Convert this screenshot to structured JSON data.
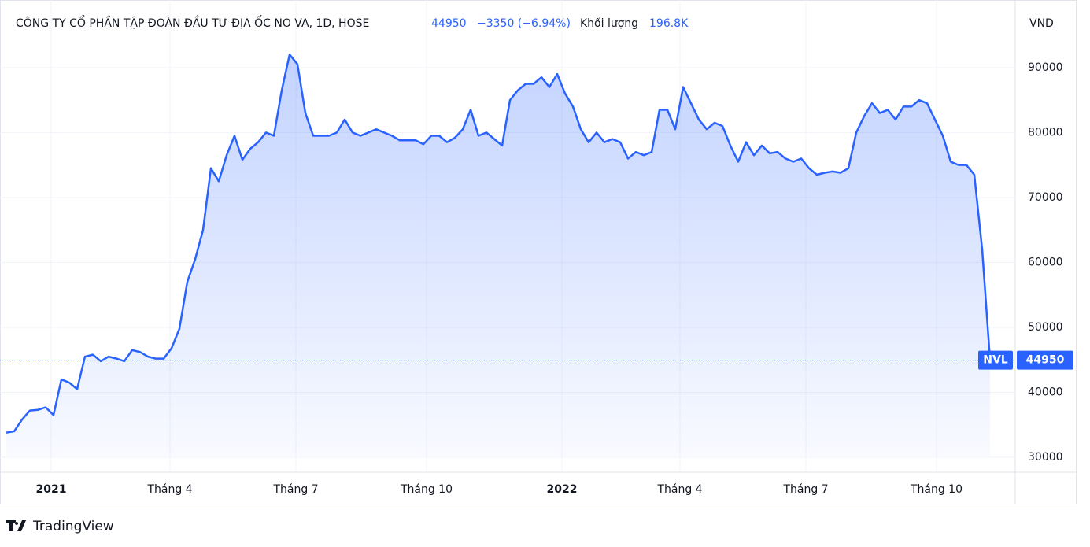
{
  "chart_data": {
    "type": "area",
    "title": "CÔNG TY CỔ PHẦN TẬP ĐOÀN ĐẦU TƯ ĐỊA ỐC NO VA, 1D, HOSE",
    "change": "−3350 (−6.94%)",
    "volume_label": "Khối lượng",
    "volume": "196.8K",
    "y_unit": "VND",
    "brand": "TradingView",
    "series": [
      {
        "name": "NVL",
        "color": "#2962ff",
        "values": [
          33800,
          34000,
          35800,
          37200,
          37300,
          37700,
          36500,
          42000,
          41500,
          40500,
          45500,
          45800,
          44800,
          45500,
          45200,
          44800,
          46500,
          46200,
          45500,
          45200,
          45200,
          46800,
          49800,
          57000,
          60500,
          65000,
          74500,
          72500,
          76500,
          79500,
          75800,
          77500,
          78500,
          80000,
          79500,
          86500,
          92000,
          90500,
          83000,
          79500,
          79500,
          79500,
          80000,
          82000,
          80000,
          79500,
          80000,
          80500,
          80000,
          79500,
          78800,
          78800,
          78800,
          78200,
          79500,
          79500,
          78500,
          79200,
          80500,
          83500,
          79500,
          80000,
          79000,
          78000,
          85000,
          86500,
          87500,
          87500,
          88500,
          87000,
          89000,
          86000,
          84000,
          80500,
          78500,
          80000,
          78500,
          79000,
          78500,
          76000,
          77000,
          76500,
          77000,
          83500,
          83500,
          80500,
          87000,
          84500,
          82000,
          80500,
          81500,
          81000,
          78000,
          75500,
          78500,
          76500,
          78000,
          76800,
          77000,
          76000,
          75500,
          76000,
          74500,
          73500,
          73800,
          74000,
          73800,
          74500,
          80000,
          82500,
          84500,
          83000,
          83500,
          82000,
          84000,
          84000,
          85000,
          84500,
          82000,
          79500,
          75500,
          75000,
          75000,
          73500,
          62000,
          44950
        ]
      }
    ],
    "xlim": [
      0,
      128.2
    ],
    "xticks": [
      {
        "value": 5.7,
        "label": "2021"
      },
      {
        "value": 20.8,
        "label": "Tháng 4"
      },
      {
        "value": 36.8,
        "label": "Tháng 7"
      },
      {
        "value": 53.4,
        "label": "Tháng 10"
      },
      {
        "value": 70.6,
        "label": "2022"
      },
      {
        "value": 85.6,
        "label": "Tháng 4"
      },
      {
        "value": 101.6,
        "label": "Tháng 7"
      },
      {
        "value": 118.2,
        "label": "Tháng 10"
      }
    ],
    "ylim": [
      27700,
      100400
    ],
    "yticks": [
      30000,
      40000,
      50000,
      60000,
      70000,
      80000,
      90000
    ],
    "grid": true
  }
}
